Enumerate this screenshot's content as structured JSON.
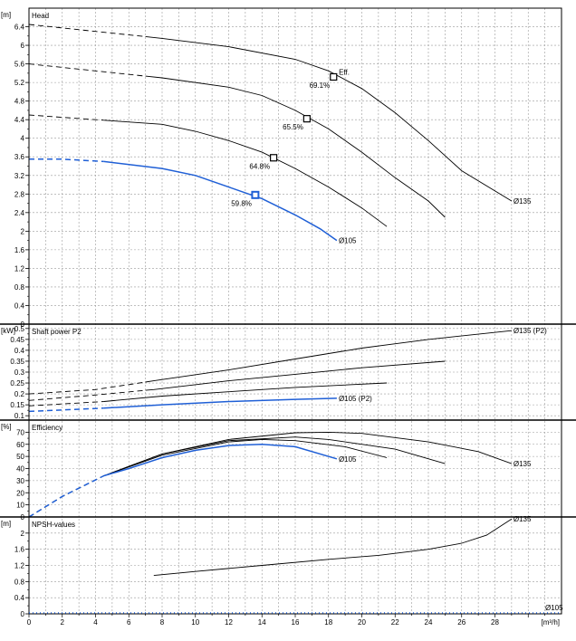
{
  "colors": {
    "highlight": "#1f5fd6",
    "curve": "#000000"
  },
  "x_axis": {
    "unit": "[m³/h]",
    "min": 0,
    "max": 32,
    "ticks": [
      0,
      2,
      4,
      6,
      8,
      10,
      12,
      14,
      16,
      18,
      20,
      22,
      24,
      26,
      28
    ]
  },
  "chart_data": [
    {
      "type": "line",
      "title": "Head",
      "ylabel": "[m]",
      "ylim": [
        0,
        6.8
      ],
      "yticks": [
        0.0,
        0.4,
        0.8,
        1.2,
        1.6,
        2.0,
        2.4,
        2.8,
        3.2,
        3.6,
        4.0,
        4.4,
        4.8,
        5.2,
        5.6,
        6.0,
        6.4
      ],
      "series": [
        {
          "name": "Ø135",
          "highlight": false,
          "dashed_until": 7,
          "points": [
            [
              0,
              6.45
            ],
            [
              4,
              6.3
            ],
            [
              8,
              6.15
            ],
            [
              12,
              5.97
            ],
            [
              16,
              5.7
            ],
            [
              18,
              5.45
            ],
            [
              20,
              5.07
            ],
            [
              22,
              4.55
            ],
            [
              24,
              3.95
            ],
            [
              26,
              3.3
            ],
            [
              29,
              2.65
            ]
          ],
          "marker": {
            "x": 18.3,
            "y": 5.32,
            "label": "69.1%"
          }
        },
        {
          "name": "",
          "highlight": false,
          "dashed_until": 7,
          "points": [
            [
              0,
              5.6
            ],
            [
              4,
              5.45
            ],
            [
              8,
              5.3
            ],
            [
              12,
              5.1
            ],
            [
              14,
              4.92
            ],
            [
              16,
              4.6
            ],
            [
              18,
              4.2
            ],
            [
              20,
              3.7
            ],
            [
              22,
              3.15
            ],
            [
              24,
              2.65
            ],
            [
              25,
              2.3
            ]
          ],
          "marker": {
            "x": 16.7,
            "y": 4.42,
            "label": "65.5%"
          }
        },
        {
          "name": "",
          "highlight": false,
          "dashed_until": 4.5,
          "points": [
            [
              0,
              4.5
            ],
            [
              4,
              4.4
            ],
            [
              8,
              4.3
            ],
            [
              10,
              4.15
            ],
            [
              12,
              3.95
            ],
            [
              14,
              3.7
            ],
            [
              16,
              3.35
            ],
            [
              18,
              2.95
            ],
            [
              20,
              2.5
            ],
            [
              21.5,
              2.1
            ]
          ],
          "marker": {
            "x": 14.7,
            "y": 3.58,
            "label": "64.8%"
          }
        },
        {
          "name": "Ø105",
          "highlight": true,
          "dashed_until": 4.5,
          "points": [
            [
              0,
              3.55
            ],
            [
              2,
              3.55
            ],
            [
              4.5,
              3.5
            ],
            [
              8,
              3.35
            ],
            [
              10,
              3.2
            ],
            [
              12,
              2.95
            ],
            [
              14,
              2.7
            ],
            [
              16,
              2.35
            ],
            [
              17.5,
              2.05
            ],
            [
              18.5,
              1.8
            ]
          ],
          "marker": {
            "x": 13.6,
            "y": 2.78,
            "label": "59.8%"
          }
        }
      ],
      "annotations": [
        {
          "text": "Eff.",
          "x": 18.4,
          "y": 5.35
        }
      ]
    },
    {
      "type": "line",
      "title": "Shaft power P2",
      "ylabel": "[kW]",
      "ylim": [
        0.08,
        0.52
      ],
      "yticks": [
        0.1,
        0.15,
        0.2,
        0.25,
        0.3,
        0.35,
        0.4,
        0.45,
        0.5
      ],
      "series": [
        {
          "name": "Ø135 (P2)",
          "highlight": false,
          "dashed_until": 7,
          "points": [
            [
              0,
              0.2
            ],
            [
              4,
              0.22
            ],
            [
              7.5,
              0.26
            ],
            [
              12,
              0.31
            ],
            [
              16,
              0.36
            ],
            [
              20,
              0.41
            ],
            [
              24,
              0.45
            ],
            [
              29,
              0.49
            ]
          ]
        },
        {
          "name": "",
          "highlight": false,
          "dashed_until": 7,
          "points": [
            [
              0,
              0.17
            ],
            [
              4,
              0.195
            ],
            [
              7.5,
              0.22
            ],
            [
              12,
              0.26
            ],
            [
              16,
              0.29
            ],
            [
              20,
              0.32
            ],
            [
              25,
              0.35
            ]
          ]
        },
        {
          "name": "",
          "highlight": false,
          "dashed_until": 4.5,
          "points": [
            [
              0,
              0.145
            ],
            [
              4.5,
              0.165
            ],
            [
              8,
              0.19
            ],
            [
              12,
              0.21
            ],
            [
              16,
              0.23
            ],
            [
              21.5,
              0.25
            ]
          ]
        },
        {
          "name": "Ø105 (P2)",
          "highlight": true,
          "dashed_until": 4.5,
          "points": [
            [
              0,
              0.12
            ],
            [
              4.5,
              0.135
            ],
            [
              8,
              0.15
            ],
            [
              12,
              0.165
            ],
            [
              16,
              0.175
            ],
            [
              18.5,
              0.18
            ]
          ]
        }
      ]
    },
    {
      "type": "line",
      "title": "Efficiency",
      "ylabel": "[%]",
      "ylim": [
        0,
        80
      ],
      "yticks": [
        0,
        10,
        20,
        30,
        40,
        50,
        60,
        70
      ],
      "series": [
        {
          "name": "Ø135",
          "highlight": false,
          "dashed_until": 4.5,
          "points": [
            [
              0,
              0
            ],
            [
              2,
              17
            ],
            [
              4.5,
              34
            ],
            [
              8,
              52
            ],
            [
              12,
              64
            ],
            [
              16,
              69.5
            ],
            [
              18,
              70
            ],
            [
              20,
              69
            ],
            [
              24,
              62
            ],
            [
              27,
              54
            ],
            [
              29,
              44
            ]
          ]
        },
        {
          "name": "",
          "highlight": false,
          "dashed_until": 4.5,
          "points": [
            [
              0,
              0
            ],
            [
              2,
              17
            ],
            [
              4.5,
              34
            ],
            [
              8,
              52
            ],
            [
              12,
              63
            ],
            [
              16,
              66
            ],
            [
              18,
              64
            ],
            [
              22,
              56
            ],
            [
              25,
              44
            ]
          ]
        },
        {
          "name": "",
          "highlight": false,
          "dashed_until": 4.5,
          "points": [
            [
              0,
              0
            ],
            [
              2,
              17
            ],
            [
              4.5,
              34
            ],
            [
              8,
              51
            ],
            [
              12,
              62
            ],
            [
              14,
              64
            ],
            [
              16,
              63
            ],
            [
              19,
              58
            ],
            [
              21.5,
              49
            ]
          ]
        },
        {
          "name": "Ø105",
          "highlight": true,
          "dashed_until": 4.5,
          "points": [
            [
              0,
              0
            ],
            [
              2,
              17
            ],
            [
              4.5,
              34
            ],
            [
              6,
              40
            ],
            [
              8,
              49
            ],
            [
              10,
              55
            ],
            [
              12,
              59
            ],
            [
              14,
              60
            ],
            [
              16,
              58
            ],
            [
              18.5,
              48
            ]
          ]
        }
      ]
    },
    {
      "type": "line",
      "title": "NPSH-values",
      "ylabel": "[m]",
      "ylim": [
        0,
        2.4
      ],
      "yticks": [
        0.0,
        0.4,
        0.8,
        1.2,
        1.6,
        2.0
      ],
      "series": [
        {
          "name": "Ø135",
          "highlight": false,
          "dashed_until": 0,
          "points": [
            [
              7.5,
              0.95
            ],
            [
              10,
              1.05
            ],
            [
              14,
              1.2
            ],
            [
              18,
              1.35
            ],
            [
              21,
              1.45
            ],
            [
              24,
              1.6
            ],
            [
              26,
              1.75
            ],
            [
              27.5,
              1.95
            ],
            [
              29,
              2.35
            ]
          ]
        },
        {
          "name": "Ø105",
          "highlight": true,
          "dashed_until": 0,
          "points": []
        }
      ]
    }
  ]
}
